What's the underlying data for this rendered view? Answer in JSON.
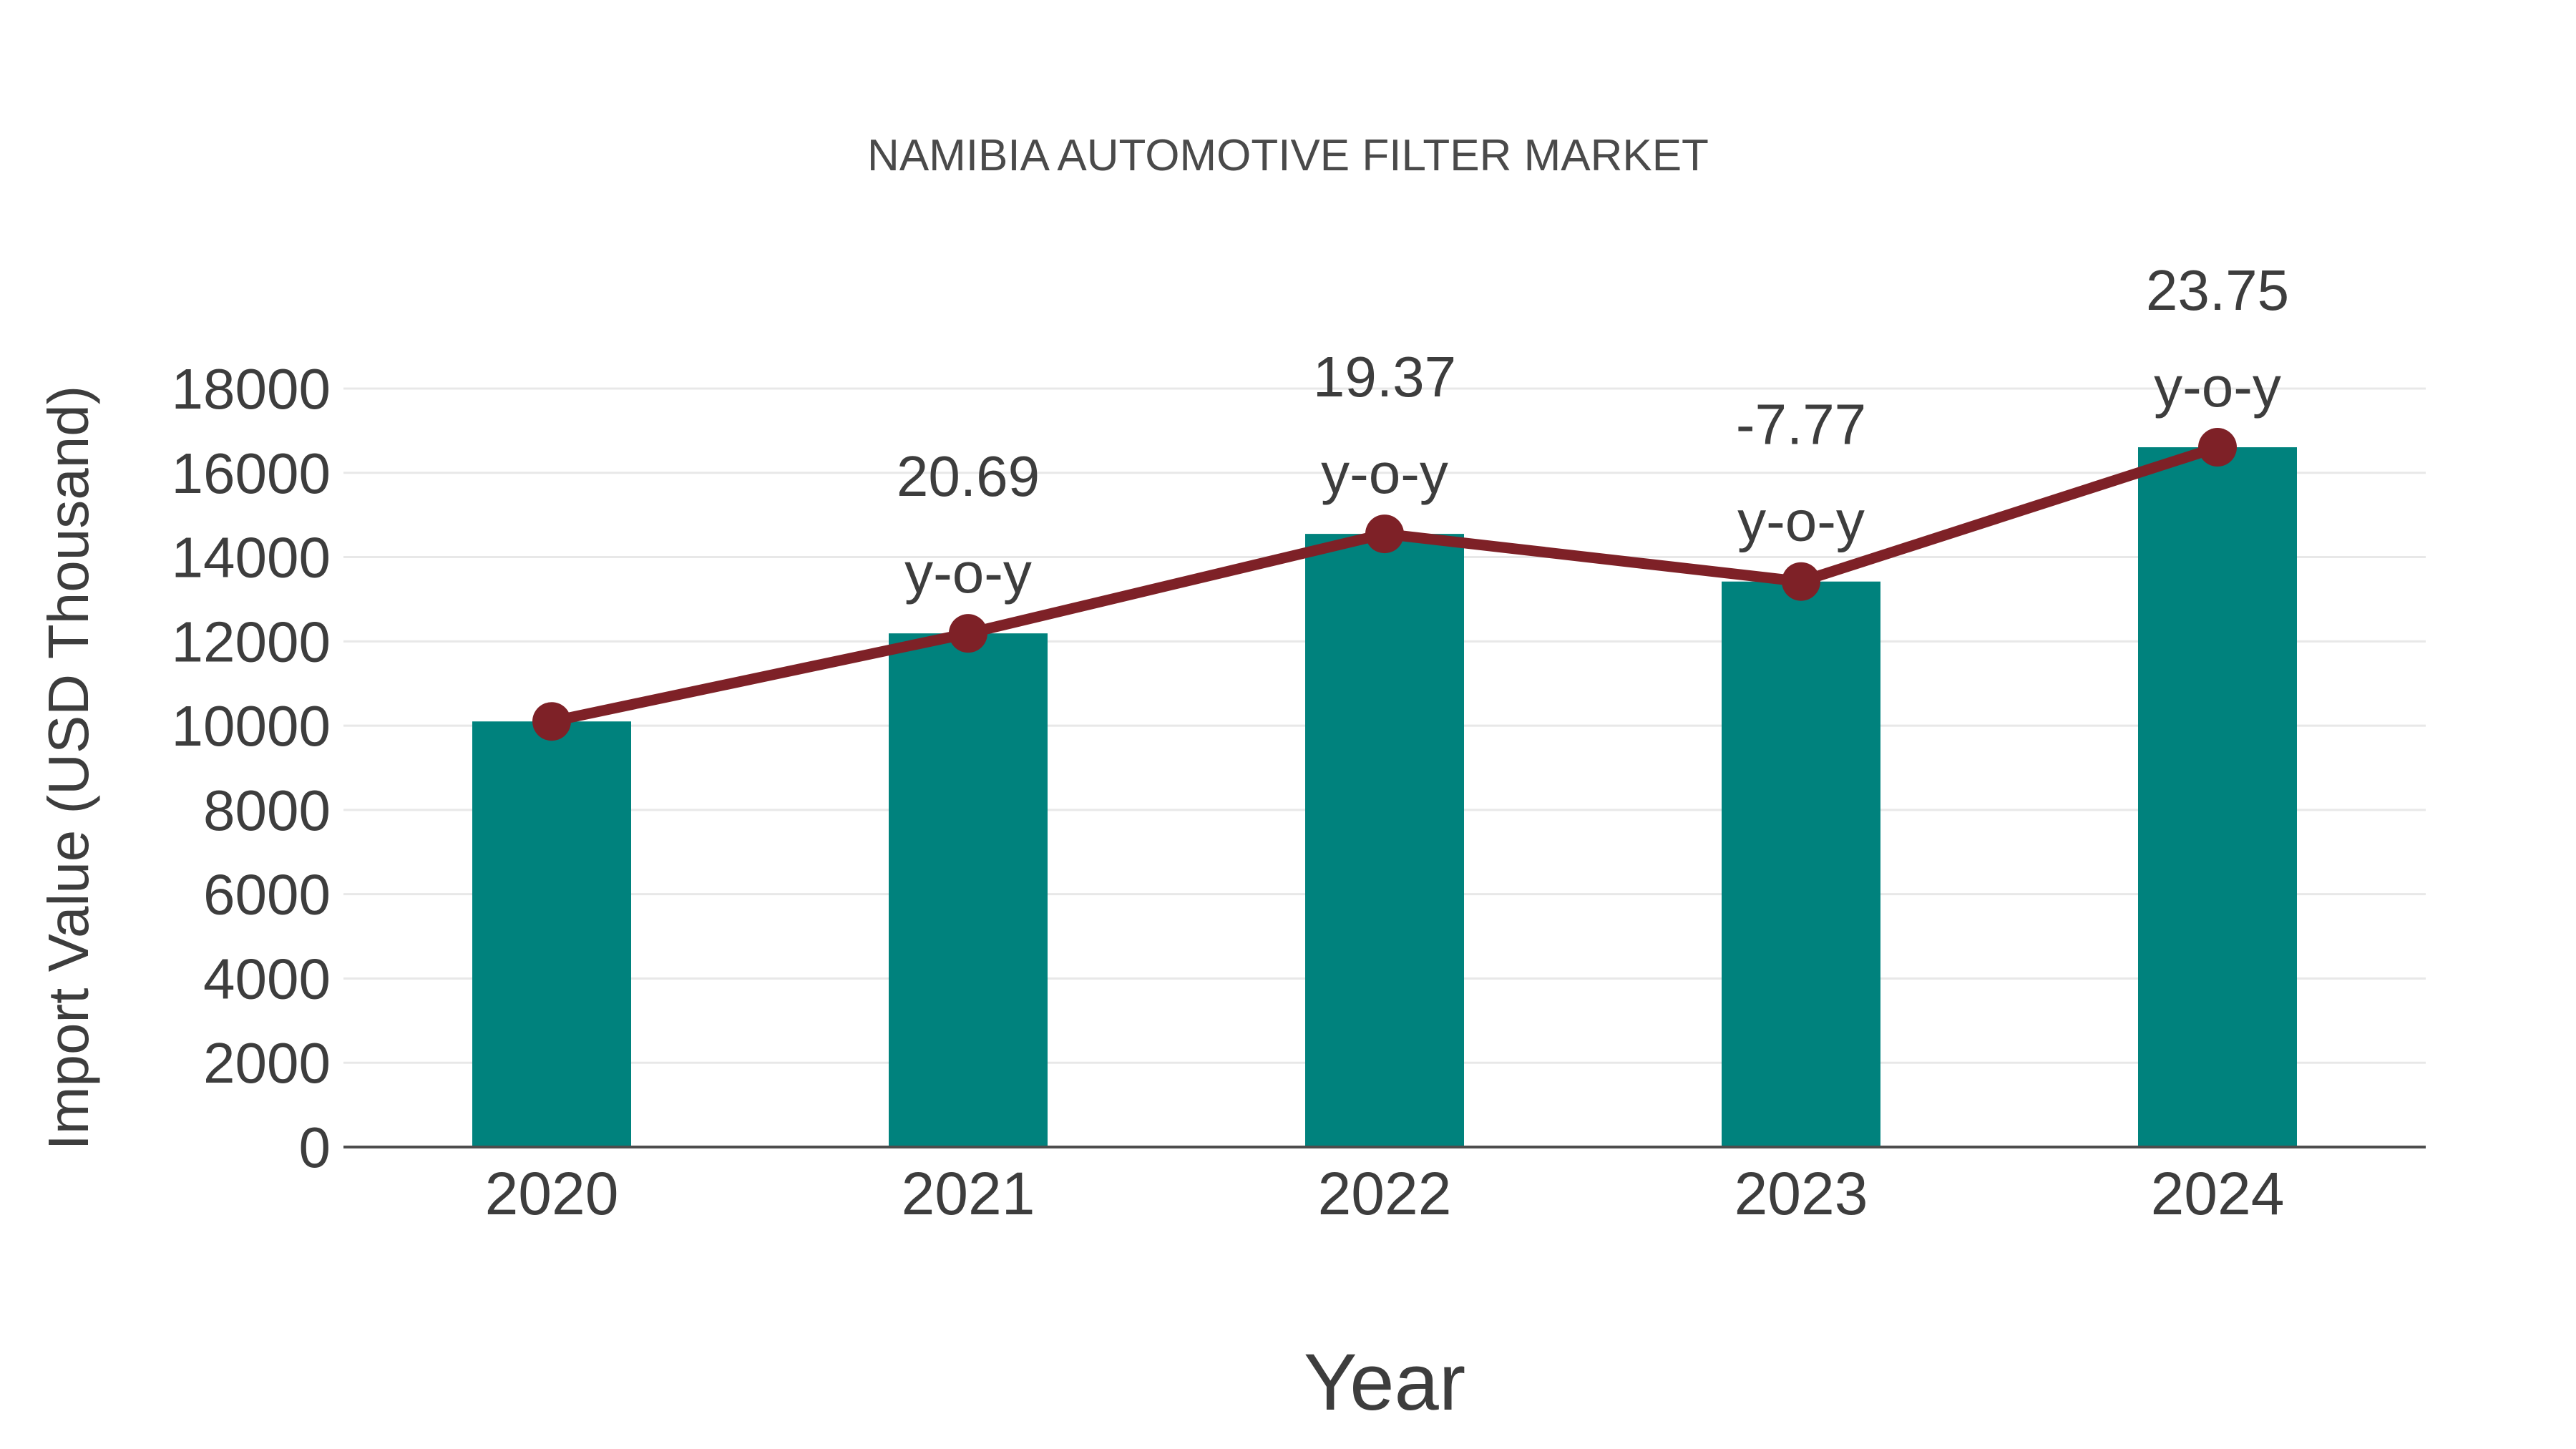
{
  "chart_data": {
    "type": "bar",
    "combo": "bar+line",
    "title": "NAMIBIA AUTOMOTIVE FILTER MARKET",
    "xlabel": "Year",
    "ylabel": "Import Value (USD Thousand)",
    "categories": [
      "2020",
      "2021",
      "2022",
      "2023",
      "2024"
    ],
    "series": [
      {
        "name": "Import Value (USD Thousand)",
        "type": "bar",
        "values": [
          10100,
          12190,
          14551,
          13420,
          16607
        ],
        "color": "#00827D"
      },
      {
        "name": "Year-over-year trend line",
        "type": "line",
        "values": [
          10100,
          12190,
          14551,
          13420,
          16607
        ],
        "color": "#7E2127"
      }
    ],
    "yoy_percent": [
      null,
      20.69,
      19.37,
      -7.77,
      23.75
    ],
    "annotations": [
      {
        "category": "2021",
        "lines": [
          "20.69",
          "y-o-y"
        ]
      },
      {
        "category": "2022",
        "lines": [
          "19.37",
          "y-o-y"
        ]
      },
      {
        "category": "2023",
        "lines": [
          "-7.77",
          "y-o-y"
        ]
      },
      {
        "category": "2024",
        "lines": [
          "23.75",
          "y-o-y"
        ]
      }
    ],
    "ylim": [
      0,
      18000
    ],
    "ytick_step": 2000,
    "yticks": [
      0,
      2000,
      4000,
      6000,
      8000,
      10000,
      12000,
      14000,
      16000,
      18000
    ],
    "grid": true,
    "legend_position": "none",
    "colors": {
      "bar": "#00827D",
      "line": "#7E2127",
      "marker": "#7E2127",
      "title_text": "#4A4A4A",
      "tick_text": "#3D3D3D",
      "annotation_text": "#3D3D3D",
      "gridline": "#E8E8E8",
      "axis_line": "#4D4D4D",
      "background": "#FFFFFF"
    }
  }
}
